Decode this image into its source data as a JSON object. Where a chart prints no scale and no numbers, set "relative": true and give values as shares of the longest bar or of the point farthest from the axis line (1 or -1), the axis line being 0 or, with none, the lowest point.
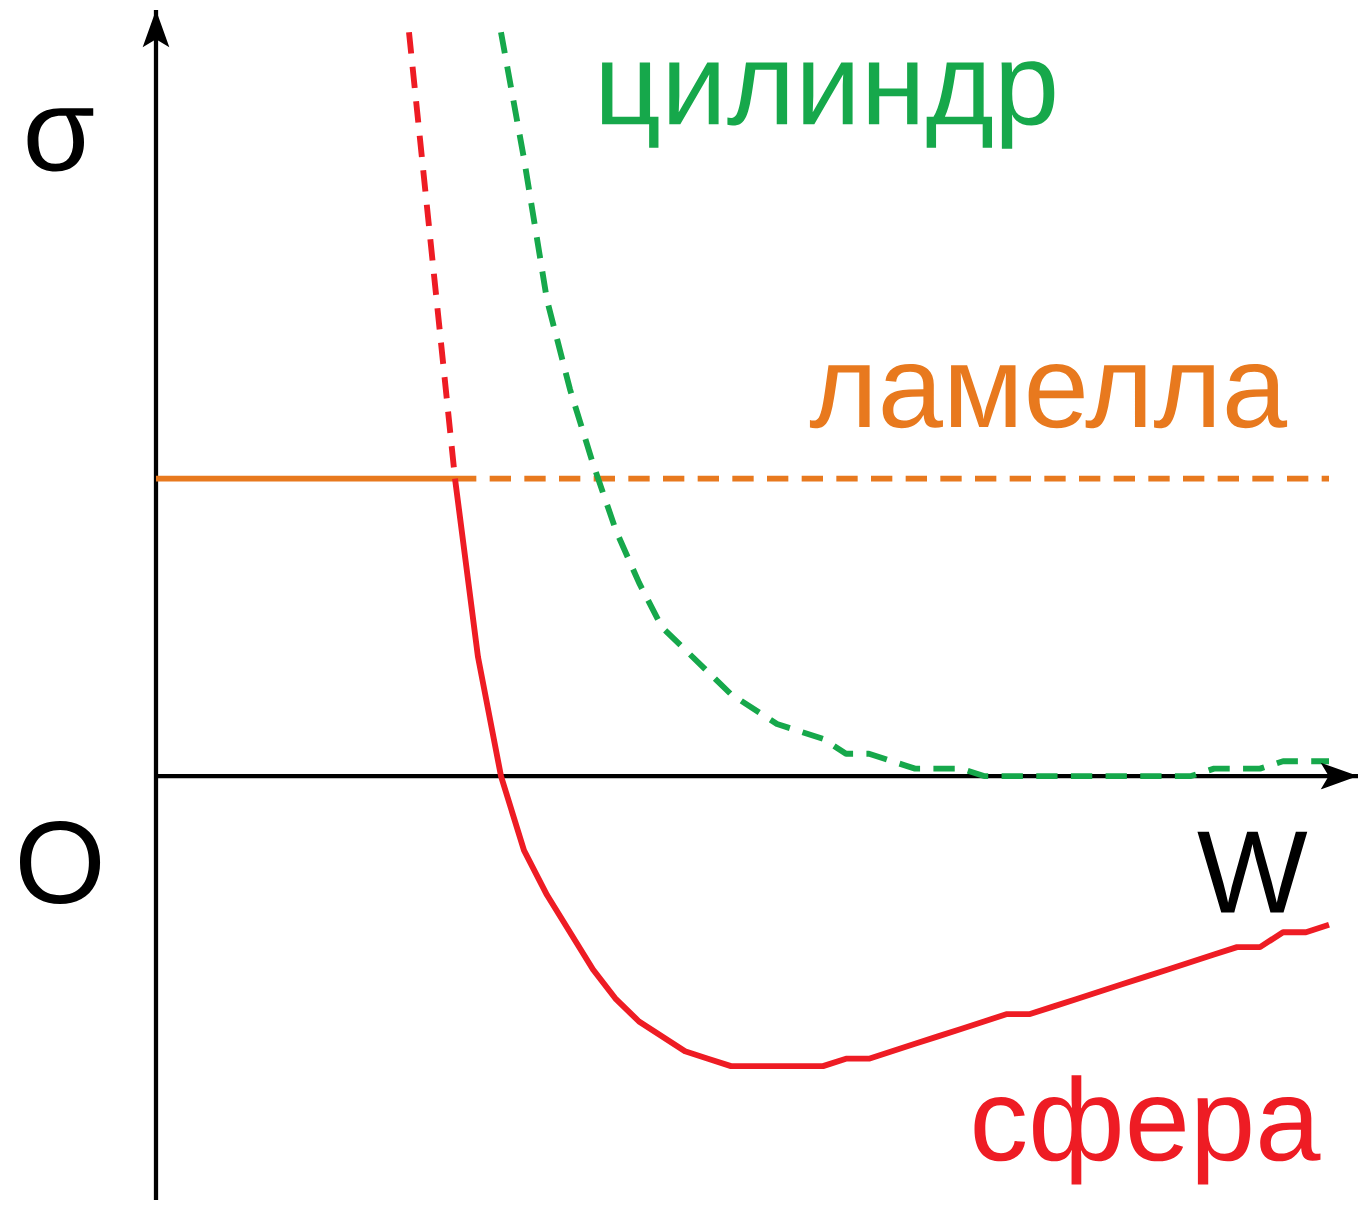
{
  "chart_data": {
    "type": "line",
    "relative": true,
    "xlabel": "W",
    "ylabel": "σ",
    "annotations": [
      "O"
    ],
    "categories": [
      null,
      null,
      null,
      null,
      null,
      null,
      null,
      null,
      null,
      null,
      null,
      null,
      null,
      null,
      null,
      null,
      null,
      null,
      null,
      null,
      null,
      null,
      null,
      null,
      null,
      null,
      null,
      null,
      null,
      null,
      null,
      null,
      null,
      null,
      null,
      null,
      null,
      null,
      null,
      null,
      null,
      null,
      null,
      null,
      null,
      null,
      null,
      null,
      null,
      null,
      null,
      null
    ],
    "series": [
      {
        "name": "ламелла",
        "color": "#e8791e",
        "line_style": "solid",
        "values": [
          0.4,
          0.4,
          0.4,
          0.4,
          0.4,
          0.4,
          0.4,
          0.4,
          0.4,
          0.4,
          0.4,
          0.4,
          0.4,
          0.4,
          null,
          null,
          null,
          null,
          null,
          null,
          null,
          null,
          null,
          null,
          null,
          null,
          null,
          null,
          null,
          null,
          null,
          null,
          null,
          null,
          null,
          null,
          null,
          null,
          null,
          null,
          null,
          null,
          null,
          null,
          null,
          null,
          null,
          null,
          null,
          null,
          null,
          null
        ]
      },
      {
        "color": "#e8791e",
        "line_style": "dashed",
        "values": [
          null,
          null,
          null,
          null,
          null,
          null,
          null,
          null,
          null,
          null,
          null,
          null,
          null,
          0.4,
          0.4,
          0.4,
          0.4,
          0.4,
          0.4,
          0.4,
          0.4,
          0.4,
          0.4,
          0.4,
          0.4,
          0.4,
          0.4,
          0.4,
          0.4,
          0.4,
          0.4,
          0.4,
          0.4,
          0.4,
          0.4,
          0.4,
          0.4,
          0.4,
          0.4,
          0.4,
          0.4,
          0.4,
          0.4,
          0.4,
          0.4,
          0.4,
          0.4,
          0.4,
          0.4,
          0.4,
          0.4,
          0.4
        ]
      },
      {
        "color": "#ee1c24",
        "line_style": "dashed",
        "values": [
          null,
          null,
          null,
          null,
          null,
          null,
          null,
          null,
          null,
          null,
          null,
          1.0,
          0.7,
          0.4,
          null,
          null,
          null,
          null,
          null,
          null,
          null,
          null,
          null,
          null,
          null,
          null,
          null,
          null,
          null,
          null,
          null,
          null,
          null,
          null,
          null,
          null,
          null,
          null,
          null,
          null,
          null,
          null,
          null,
          null,
          null,
          null,
          null,
          null,
          null,
          null,
          null,
          null
        ]
      },
      {
        "name": "сфера",
        "color": "#ee1c24",
        "line_style": "solid",
        "values": [
          null,
          null,
          null,
          null,
          null,
          null,
          null,
          null,
          null,
          null,
          null,
          null,
          null,
          0.4,
          0.16,
          0,
          -0.1,
          -0.16,
          -0.21,
          -0.26,
          -0.3,
          -0.33,
          -0.35,
          -0.37,
          -0.38,
          -0.39,
          -0.39,
          -0.39,
          -0.39,
          -0.39,
          -0.38,
          -0.38,
          -0.37,
          -0.36,
          -0.35,
          -0.34,
          -0.33,
          -0.32,
          -0.32,
          -0.31,
          -0.3,
          -0.29,
          -0.28,
          -0.27,
          -0.26,
          -0.25,
          -0.24,
          -0.23,
          -0.23,
          -0.21,
          -0.21,
          -0.2
        ]
      },
      {
        "name": "цилиндр",
        "color": "#16a84b",
        "line_style": "dashed",
        "values": [
          null,
          null,
          null,
          null,
          null,
          null,
          null,
          null,
          null,
          null,
          null,
          null,
          null,
          null,
          null,
          1.0,
          0.83,
          0.64,
          0.52,
          0.42,
          0.33,
          0.26,
          0.2,
          0.17,
          0.14,
          0.11,
          0.09,
          0.07,
          0.06,
          0.05,
          0.03,
          0.03,
          0.02,
          0.01,
          0.01,
          0.01,
          0,
          0,
          0,
          0,
          0,
          0,
          0,
          0,
          0,
          0,
          0.01,
          0.01,
          0.01,
          0.02,
          0.02,
          0.02
        ]
      }
    ]
  }
}
